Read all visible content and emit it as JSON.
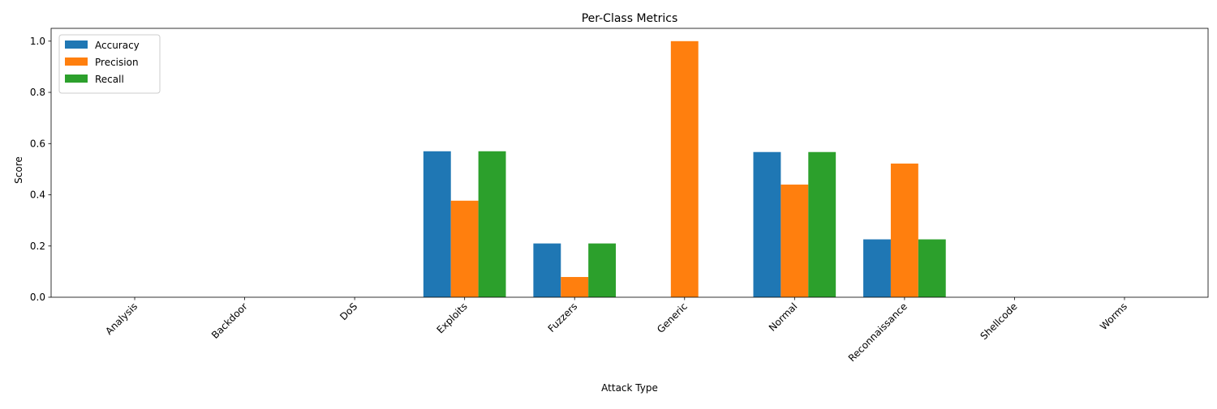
{
  "chart_data": {
    "type": "bar",
    "title": "Per-Class Metrics",
    "xlabel": "Attack Type",
    "ylabel": "Score",
    "ylim": [
      0,
      1.05
    ],
    "yticks": [
      "0.0",
      "0.2",
      "0.4",
      "0.6",
      "0.8",
      "1.0"
    ],
    "ytick_values": [
      0,
      0.2,
      0.4,
      0.6,
      0.8,
      1.0
    ],
    "grid": false,
    "legend_position": "top-left",
    "categories": [
      "Analysis",
      "Backdoor",
      "DoS",
      "Exploits",
      "Fuzzers",
      "Generic",
      "Normal",
      "Reconnaissance",
      "Shellcode",
      "Worms"
    ],
    "series": [
      {
        "name": "Accuracy",
        "color": "#1f77b4",
        "values": [
          0,
          0,
          0,
          0.57,
          0.21,
          0,
          0.567,
          0.226,
          0,
          0
        ]
      },
      {
        "name": "Precision",
        "color": "#ff7f0e",
        "values": [
          0,
          0,
          0,
          0.377,
          0.079,
          1.0,
          0.44,
          0.522,
          0,
          0
        ]
      },
      {
        "name": "Recall",
        "color": "#2ca02c",
        "values": [
          0,
          0,
          0,
          0.57,
          0.21,
          0,
          0.567,
          0.226,
          0,
          0
        ]
      }
    ]
  }
}
